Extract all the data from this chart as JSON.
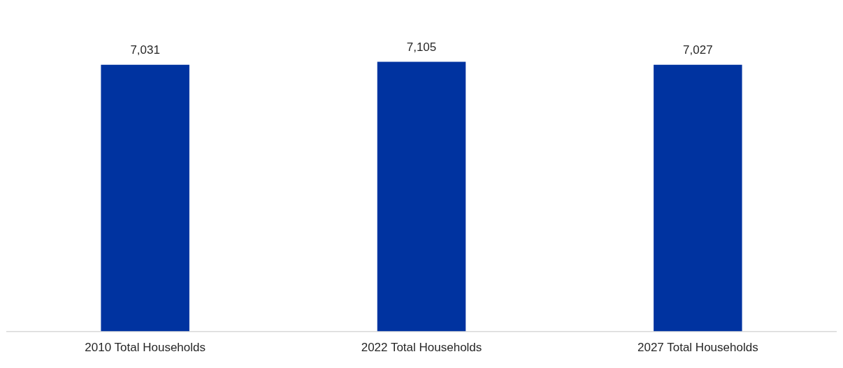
{
  "chart_data": {
    "type": "bar",
    "categories": [
      "2010 Total Households",
      "2022 Total Households",
      "2027 Total Households"
    ],
    "values": [
      7031,
      7105,
      7027
    ],
    "value_labels": [
      "7,031",
      "7,105",
      "7,027"
    ],
    "color": "#0033a0",
    "legend": false
  }
}
